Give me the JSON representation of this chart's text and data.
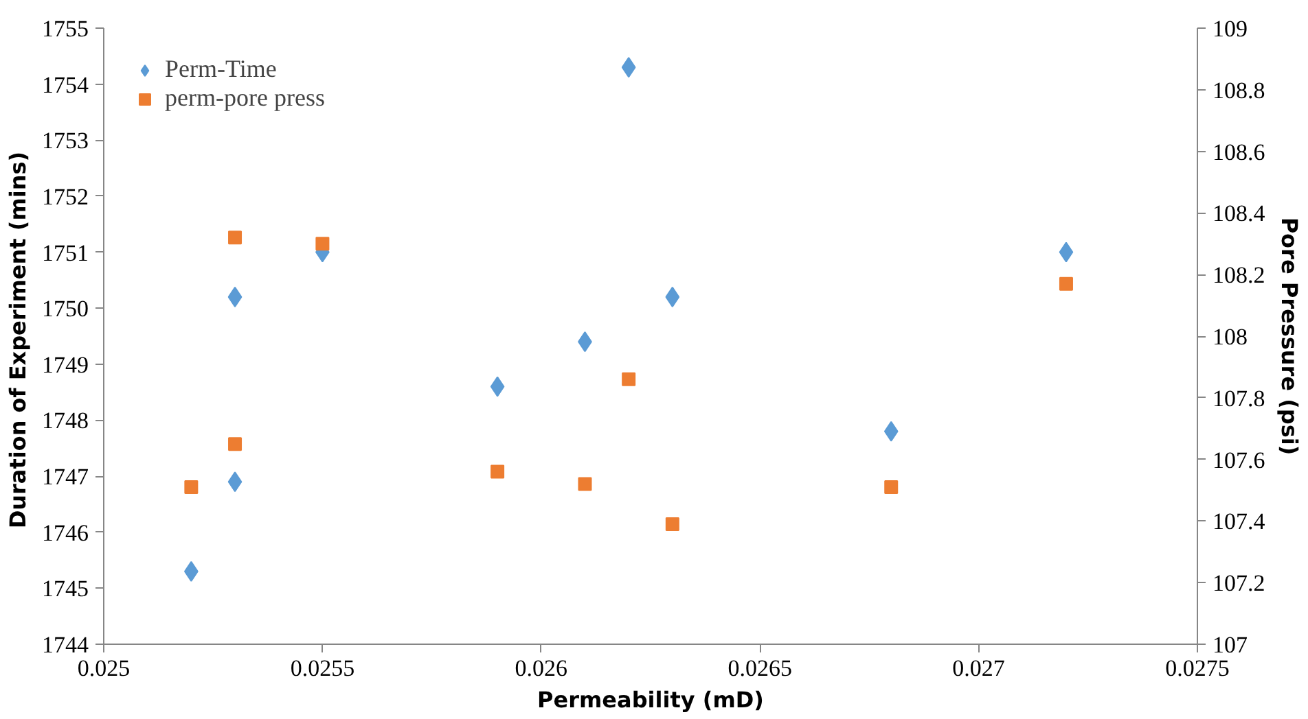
{
  "chart_data": {
    "type": "scatter",
    "xlabel": "Permeability (mD)",
    "ylabel": "Duration of  Experiment (mins)",
    "y2label": "Pore Pressure (psi)",
    "xlim": [
      0.025,
      0.0275
    ],
    "xticks": [
      0.025,
      0.0255,
      0.026,
      0.0265,
      0.027,
      0.0275
    ],
    "ylim": [
      1744,
      1755
    ],
    "yticks": [
      1744,
      1745,
      1746,
      1747,
      1748,
      1749,
      1750,
      1751,
      1752,
      1753,
      1754,
      1755
    ],
    "y2lim": [
      107,
      109
    ],
    "y2ticks": [
      107,
      107.2,
      107.4,
      107.6,
      107.8,
      108,
      108.2,
      108.4,
      108.6,
      108.8,
      109
    ],
    "grid": false,
    "legend": "top left",
    "series": [
      {
        "name": "Perm-Time",
        "color": "#5b9bd5",
        "marker": "diamond",
        "x": [
          0.0252,
          0.0253,
          0.0253,
          0.0255,
          0.0259,
          0.0261,
          0.0262,
          0.0263,
          0.0268,
          0.0272
        ],
        "values": [
          1745.3,
          1750.2,
          1746.9,
          1751.0,
          1748.6,
          1749.4,
          1754.3,
          1750.2,
          1747.8,
          1751.0
        ]
      },
      {
        "name": "perm-pore press",
        "color": "#ed7d31",
        "marker": "square",
        "axis": "y2",
        "x": [
          0.0252,
          0.0253,
          0.0253,
          0.0255,
          0.0259,
          0.0261,
          0.0262,
          0.0263,
          0.0268,
          0.0272
        ],
        "values": [
          107.51,
          107.65,
          108.32,
          108.3,
          107.56,
          107.52,
          107.86,
          107.39,
          107.51,
          108.17
        ]
      }
    ]
  }
}
